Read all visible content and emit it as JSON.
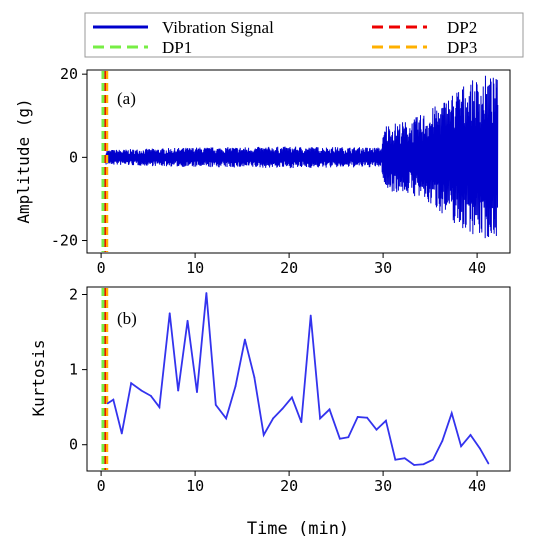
{
  "legend": {
    "entries": [
      {
        "label": "Vibration Signal",
        "color": "#0000cc",
        "dash": "solid"
      },
      {
        "label": "DP2",
        "color": "#ee0000",
        "dash": "dashed"
      },
      {
        "label": "DP1",
        "color": "#77ee44",
        "dash": "dashed"
      },
      {
        "label": "DP3",
        "color": "#ffb000",
        "dash": "dashed"
      }
    ]
  },
  "chart_data": [
    {
      "type": "line",
      "panel_label": "(a)",
      "ylabel": "Amplitude (g)",
      "xlabel": "",
      "xlim": [
        -1.5,
        43.5
      ],
      "ylim": [
        -23,
        21
      ],
      "xticks": [
        "0",
        "10",
        "20",
        "30",
        "40"
      ],
      "yticks": [
        "20",
        "0",
        "-20"
      ],
      "series": [
        {
          "name": "Vibration Signal",
          "color": "#0000cc",
          "envelope": [
            {
              "t": 0.5,
              "amp": 1.8
            },
            {
              "t": 10,
              "amp": 2.4
            },
            {
              "t": 20,
              "amp": 2.6
            },
            {
              "t": 29.8,
              "amp": 2.4
            },
            {
              "t": 30.2,
              "amp": 8
            },
            {
              "t": 33,
              "amp": 9
            },
            {
              "t": 36,
              "amp": 13
            },
            {
              "t": 38,
              "amp": 17
            },
            {
              "t": 41,
              "amp": 20
            },
            {
              "t": 42.2,
              "amp": 19
            }
          ]
        }
      ],
      "vlines": [
        {
          "name": "DP1",
          "x": 0.2,
          "color": "#77ee44"
        },
        {
          "name": "DP2",
          "x": 0.35,
          "color": "#ee0000"
        },
        {
          "name": "DP3",
          "x": 0.6,
          "color": "#ffb000"
        }
      ]
    },
    {
      "type": "line",
      "panel_label": "(b)",
      "ylabel": "Kurtosis",
      "xlabel": "Time (min)",
      "xlim": [
        -1.5,
        43.5
      ],
      "ylim": [
        -0.35,
        2.1
      ],
      "xticks": [
        "0",
        "10",
        "20",
        "30",
        "40"
      ],
      "yticks": [
        "2",
        "1",
        "0"
      ],
      "series": [
        {
          "name": "Kurtosis",
          "color": "#3333ee",
          "x": [
            0.7,
            1.3,
            2.2,
            3.2,
            4.3,
            5.3,
            6.2,
            7.3,
            8.2,
            9.2,
            10.2,
            11.2,
            12.2,
            13.3,
            14.3,
            15.3,
            16.3,
            17.3,
            18.3,
            19.3,
            20.3,
            21.3,
            22.3,
            23.3,
            24.3,
            25.4,
            26.3,
            27.3,
            28.3,
            29.3,
            30.3,
            31.3,
            32.3,
            33.3,
            34.3,
            35.3,
            36.3,
            37.3,
            38.3,
            39.3,
            40.3,
            41.2
          ],
          "y": [
            0.55,
            0.6,
            0.15,
            0.82,
            0.72,
            0.65,
            0.5,
            1.75,
            0.72,
            1.65,
            0.7,
            2.02,
            0.53,
            0.35,
            0.78,
            1.4,
            0.9,
            0.13,
            0.35,
            0.48,
            0.63,
            0.3,
            1.72,
            0.35,
            0.47,
            0.08,
            0.1,
            0.37,
            0.36,
            0.2,
            0.32,
            -0.2,
            -0.18,
            -0.27,
            -0.26,
            -0.2,
            0.05,
            0.42,
            -0.02,
            0.13,
            -0.05,
            -0.25
          ]
        }
      ],
      "vlines": [
        {
          "name": "DP1",
          "x": 0.2,
          "color": "#77ee44"
        },
        {
          "name": "DP2",
          "x": 0.35,
          "color": "#ee0000"
        },
        {
          "name": "DP3",
          "x": 0.6,
          "color": "#ffb000"
        }
      ]
    }
  ]
}
